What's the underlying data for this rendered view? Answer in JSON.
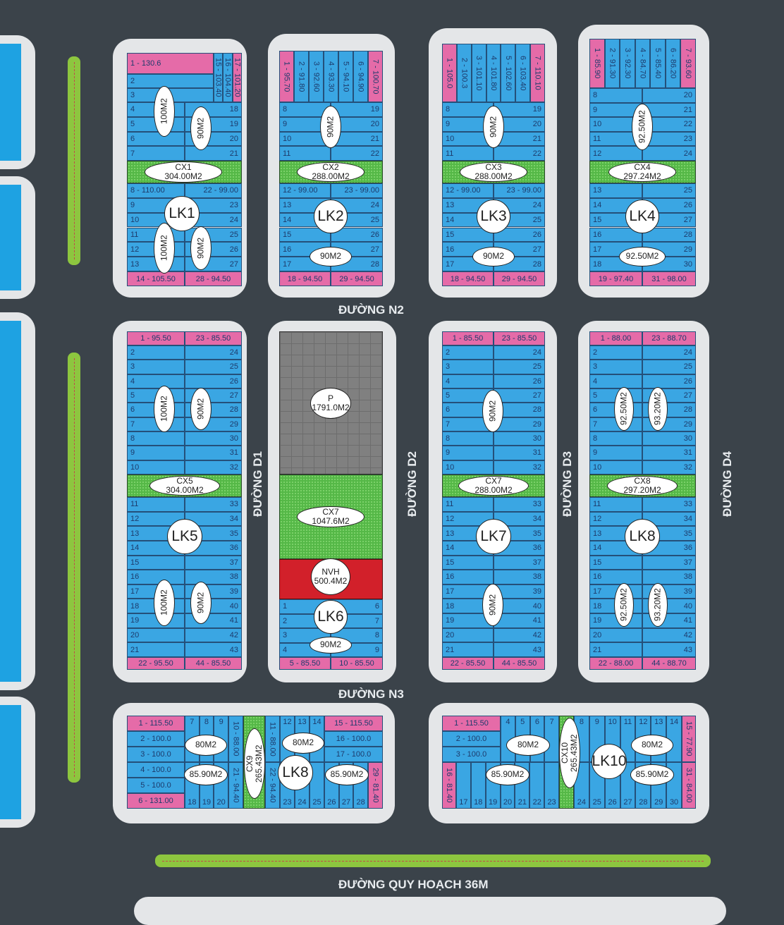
{
  "roads": {
    "n2": "ĐƯỜNG N2",
    "n3": "ĐƯỜNG N3",
    "d1": "ĐƯỜNG D1",
    "d2": "ĐƯỜNG D2",
    "d3": "ĐƯỜNG D3",
    "d4": "ĐƯỜNG D4",
    "qh36": "ĐƯỜNG QUY HOẠCH 36M"
  },
  "colors": {
    "road": "#3b434a",
    "lot": "#3aa6e3",
    "corner_lot": "#e56ba8",
    "green_space": "#55b847",
    "parking": "#808080",
    "community_house": "#d2202a"
  },
  "blocks": {
    "lk1": {
      "top_left": [
        "1 - 130.6",
        "2",
        "3"
      ],
      "top_vertical": [
        "15 - 103.40",
        "16 - 104.40",
        "17 - 101.20"
      ],
      "upper_left": [
        "4",
        "5",
        "6",
        "7"
      ],
      "upper_right": [
        "18",
        "19",
        "20",
        "21"
      ],
      "park": [
        "CX1",
        "304.00M2"
      ],
      "lower_left": [
        "8 - 110.00",
        "9",
        "10",
        "11",
        "12",
        "13"
      ],
      "lower_right": [
        "22 - 99.00",
        "23",
        "24",
        "25",
        "26",
        "27"
      ],
      "bottom": [
        "14 - 105.50",
        "28 - 94.50"
      ],
      "name": "LK1",
      "ovals": [
        "100M2",
        "90M2",
        "100M2",
        "90M2"
      ]
    },
    "lk2": {
      "top_vertical": [
        "1 - 95.70",
        "2 - 91.80",
        "3 - 92.60",
        "4 - 93.30",
        "5 - 94.10",
        "6 - 94.90",
        "7 - 100.70"
      ],
      "upper_left": [
        "8",
        "9",
        "10",
        "11"
      ],
      "upper_right": [
        "19",
        "20",
        "21",
        "22"
      ],
      "park": [
        "CX2",
        "288.00M2"
      ],
      "lower_left": [
        "12 - 99.00",
        "13",
        "14",
        "15",
        "16",
        "17"
      ],
      "lower_right": [
        "23 - 99.00",
        "24",
        "25",
        "26",
        "27",
        "28"
      ],
      "bottom": [
        "18 - 94.50",
        "29 - 94.50"
      ],
      "name": "LK2",
      "ovals": [
        "90M2",
        "90M2"
      ]
    },
    "lk3": {
      "top_vertical": [
        "1 - 105.0",
        "2 - 100.3",
        "3 - 101.10",
        "4 - 101.80",
        "5 - 102.60",
        "6 - 103.40",
        "7 - 110.10"
      ],
      "upper_left": [
        "8",
        "9",
        "10",
        "11"
      ],
      "upper_right": [
        "19",
        "20",
        "21",
        "22"
      ],
      "park": [
        "CX3",
        "288.00M2"
      ],
      "lower_left": [
        "12 - 99.00",
        "13",
        "14",
        "15",
        "16",
        "17"
      ],
      "lower_right": [
        "23 - 99.00",
        "24",
        "25",
        "26",
        "27",
        "28"
      ],
      "bottom": [
        "18 - 94.50",
        "29 - 94.50"
      ],
      "name": "LK3",
      "ovals": [
        "90M2",
        "90M2"
      ]
    },
    "lk4": {
      "top_vertical": [
        "1 - 85.90",
        "2 - 91.30",
        "3 - 92.30",
        "4 - 84.70",
        "5 - 85.40",
        "6 - 86.20",
        "7 - 93.60"
      ],
      "upper_left": [
        "8",
        "9",
        "10",
        "11",
        "12"
      ],
      "upper_right": [
        "20",
        "21",
        "22",
        "23",
        "24"
      ],
      "park": [
        "CX4",
        "297.24M2"
      ],
      "lower_left": [
        "13",
        "14",
        "15",
        "16",
        "17",
        "18"
      ],
      "lower_right": [
        "25",
        "26",
        "27",
        "28",
        "29",
        "30"
      ],
      "bottom": [
        "19 - 97.40",
        "31 - 98.00"
      ],
      "name": "LK4",
      "ovals": [
        "92.50M2",
        "92.50M2"
      ]
    },
    "lk5": {
      "top": [
        "1 - 95.50",
        "23 - 85.50"
      ],
      "upper_left": [
        "2",
        "3",
        "4",
        "5",
        "6",
        "7",
        "8",
        "9",
        "10"
      ],
      "upper_right": [
        "24",
        "25",
        "26",
        "27",
        "28",
        "29",
        "30",
        "31",
        "32"
      ],
      "park": [
        "CX5",
        "304.00M2"
      ],
      "lower_left": [
        "11",
        "12",
        "13",
        "14",
        "15",
        "16",
        "17",
        "18",
        "19",
        "20",
        "21"
      ],
      "lower_right": [
        "33",
        "34",
        "35",
        "36",
        "37",
        "38",
        "39",
        "40",
        "41",
        "42",
        "43"
      ],
      "bottom": [
        "22 - 95.50",
        "44 - 85.50"
      ],
      "name": "LK5",
      "ovals": [
        "100M2",
        "90M2",
        "100M2",
        "90M2"
      ]
    },
    "lk6": {
      "parking": [
        "P",
        "1791.0M2"
      ],
      "park": [
        "CX7",
        "1047.6M2"
      ],
      "community_house": [
        "NVH",
        "500.4M2"
      ],
      "left": [
        "1",
        "2",
        "3",
        "4"
      ],
      "right": [
        "6",
        "7",
        "8",
        "9"
      ],
      "bottom": [
        "5 - 85.50",
        "10 - 85.50"
      ],
      "name": "LK6",
      "ovals": [
        "90M2"
      ]
    },
    "lk7": {
      "top": [
        "1 - 85.50",
        "23 - 85.50"
      ],
      "upper_left": [
        "2",
        "3",
        "4",
        "5",
        "6",
        "7",
        "8",
        "9",
        "10"
      ],
      "upper_right": [
        "24",
        "25",
        "26",
        "27",
        "28",
        "29",
        "30",
        "31",
        "32"
      ],
      "park": [
        "CX7",
        "288.00M2"
      ],
      "lower_left": [
        "11",
        "12",
        "13",
        "14",
        "15",
        "16",
        "17",
        "18",
        "19",
        "20",
        "21"
      ],
      "lower_right": [
        "33",
        "34",
        "35",
        "36",
        "37",
        "38",
        "39",
        "40",
        "41",
        "42",
        "43"
      ],
      "bottom": [
        "22 - 85.50",
        "44 - 85.50"
      ],
      "name": "LK7",
      "ovals": [
        "90M2",
        "90M2"
      ]
    },
    "lk8": {
      "top": [
        "1 - 88.00",
        "23 - 88.70"
      ],
      "upper_left": [
        "2",
        "3",
        "4",
        "5",
        "6",
        "7",
        "8",
        "9",
        "10"
      ],
      "upper_right": [
        "24",
        "25",
        "26",
        "27",
        "28",
        "29",
        "30",
        "31",
        "32"
      ],
      "park": [
        "CX8",
        "297.20M2"
      ],
      "lower_left": [
        "11",
        "12",
        "13",
        "14",
        "15",
        "16",
        "17",
        "18",
        "19",
        "20",
        "21"
      ],
      "lower_right": [
        "33",
        "34",
        "35",
        "36",
        "37",
        "38",
        "39",
        "40",
        "41",
        "42",
        "43"
      ],
      "bottom": [
        "22 - 88.00",
        "44 - 88.70"
      ],
      "name": "LK8",
      "ovals": [
        "92.50M2",
        "93.20M2",
        "92.50M2",
        "93.20M2"
      ]
    },
    "lk9": {
      "left_col": [
        "1 - 115.50",
        "2 - 100.0",
        "3 - 100.0",
        "4 - 100.0",
        "5 - 100.0",
        "6 - 131.00"
      ],
      "top_cols_a": [
        "7",
        "8",
        "9"
      ],
      "bottom_cols_a": [
        "18",
        "19",
        "20"
      ],
      "v_a": [
        "10 - 88.00",
        "21 - 94.40"
      ],
      "park": [
        "CX9",
        "265.43M2"
      ],
      "v_b": [
        "11 - 88.00",
        "22 - 94.40"
      ],
      "top_cols_b": [
        "12",
        "13",
        "14"
      ],
      "bottom_cols_b": [
        "23",
        "24",
        "25"
      ],
      "right_col": [
        "15 - 115.50",
        "16 - 100.0",
        "17 - 100.0"
      ],
      "bottom_cols_c": [
        "26",
        "27",
        "28"
      ],
      "corner": "29 - 81.40",
      "name": "LK8",
      "ovals": [
        "80M2",
        "85.90M2",
        "80M2",
        "85.90M2"
      ]
    },
    "lk10": {
      "left_col": [
        "1 - 115.50",
        "2 - 100.0",
        "3 - 100.0"
      ],
      "top_cols_a": [
        "4",
        "5",
        "6",
        "7"
      ],
      "corner_left": "16 - 81.40",
      "bottom_cols_a": [
        "17",
        "18",
        "19",
        "20",
        "21",
        "22",
        "23"
      ],
      "park": [
        "CX10",
        "265.43M2"
      ],
      "top_cols_b": [
        "8",
        "9",
        "10",
        "11",
        "12",
        "13",
        "14"
      ],
      "bottom_cols_b": [
        "24",
        "25",
        "26",
        "27",
        "28",
        "29",
        "30"
      ],
      "right_col": [
        "15 - 77.90",
        "31 - 84.00"
      ],
      "name": "LK10",
      "ovals": [
        "80M2",
        "85.90M2",
        "80M2",
        "85.90M2"
      ]
    }
  }
}
